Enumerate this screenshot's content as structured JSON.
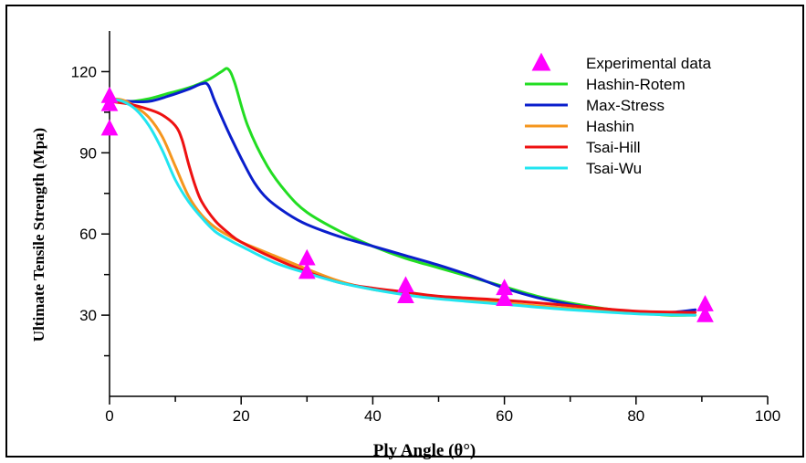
{
  "chart_data": {
    "type": "line",
    "xlabel": "Ply Angle (θ°)",
    "ylabel": "Ultimate Tensile Strength (Mpa)",
    "xlim": [
      0,
      100
    ],
    "ylim": [
      0,
      135
    ],
    "x_ticks": [
      0,
      20,
      40,
      60,
      80,
      100
    ],
    "y_ticks": [
      30,
      60,
      90,
      120
    ],
    "grid": false,
    "legend_position": "top-right",
    "experimental": {
      "name": "Experimental data",
      "marker": "triangle",
      "color": "#ff00ff",
      "points": [
        [
          0,
          111
        ],
        [
          0,
          108
        ],
        [
          0,
          99
        ],
        [
          30,
          51
        ],
        [
          30,
          46
        ],
        [
          45,
          41
        ],
        [
          45,
          37
        ],
        [
          60,
          40
        ],
        [
          60,
          36
        ],
        [
          90.5,
          34
        ],
        [
          90.5,
          30
        ]
      ]
    },
    "series": [
      {
        "name": "Hashin-Rotem",
        "color": "#22dd22",
        "x": [
          0,
          3,
          6,
          9,
          12,
          15,
          17,
          18,
          19,
          21,
          24,
          27,
          30,
          35,
          40,
          45,
          50,
          55,
          60,
          65,
          70,
          75,
          80,
          85,
          89
        ],
        "y": [
          110,
          109,
          110,
          112,
          114,
          117,
          120,
          121,
          116,
          100,
          85,
          75,
          68,
          61,
          55.5,
          51,
          47.5,
          44,
          40.5,
          37,
          34.5,
          32.5,
          31,
          30,
          30
        ]
      },
      {
        "name": "Max-Stress",
        "color": "#0a1ecc",
        "x": [
          0,
          3,
          6,
          9,
          12,
          14,
          15,
          16,
          18,
          20,
          22,
          24,
          27,
          30,
          35,
          40,
          45,
          50,
          55,
          60,
          65,
          70,
          75,
          80,
          85,
          89
        ],
        "y": [
          110,
          109,
          109,
          111,
          113.5,
          115.5,
          115,
          109,
          98,
          88,
          79,
          73,
          67.5,
          63.5,
          59,
          55.5,
          52,
          48.5,
          44.5,
          40,
          36.5,
          34,
          32,
          31,
          31,
          32
        ]
      },
      {
        "name": "Hashin",
        "color": "#f5961e",
        "x": [
          0,
          2,
          4,
          6,
          8,
          10,
          12,
          14,
          16,
          18,
          20,
          25,
          30,
          35,
          40,
          45,
          50,
          60,
          70,
          80,
          89
        ],
        "y": [
          110,
          109.5,
          107,
          103,
          96,
          85,
          74,
          67,
          62.5,
          59.5,
          57,
          52,
          47,
          42.5,
          39.5,
          38,
          36.5,
          34.5,
          32.5,
          31,
          30
        ]
      },
      {
        "name": "Tsai-Hill",
        "color": "#ee1111",
        "x": [
          0,
          3,
          6,
          8,
          10,
          11,
          12,
          13,
          14,
          16,
          18,
          20,
          25,
          30,
          35,
          40,
          45,
          50,
          60,
          70,
          80,
          89
        ],
        "y": [
          109,
          108,
          106,
          104,
          100,
          95,
          86,
          78,
          72,
          65,
          60.5,
          57,
          51,
          46,
          42,
          40,
          38.5,
          37,
          35.5,
          33.5,
          31.5,
          31
        ]
      },
      {
        "name": "Tsai-Wu",
        "color": "#22e5f0",
        "x": [
          0,
          2,
          4,
          6,
          8,
          10,
          12,
          14,
          16,
          18,
          20,
          25,
          30,
          35,
          40,
          45,
          50,
          60,
          70,
          80,
          89
        ],
        "y": [
          110,
          109,
          106,
          100,
          91,
          80,
          72,
          66,
          61,
          58,
          55.5,
          49.5,
          45.5,
          42,
          39.5,
          37.5,
          36,
          34,
          32,
          30.5,
          30
        ]
      }
    ]
  }
}
